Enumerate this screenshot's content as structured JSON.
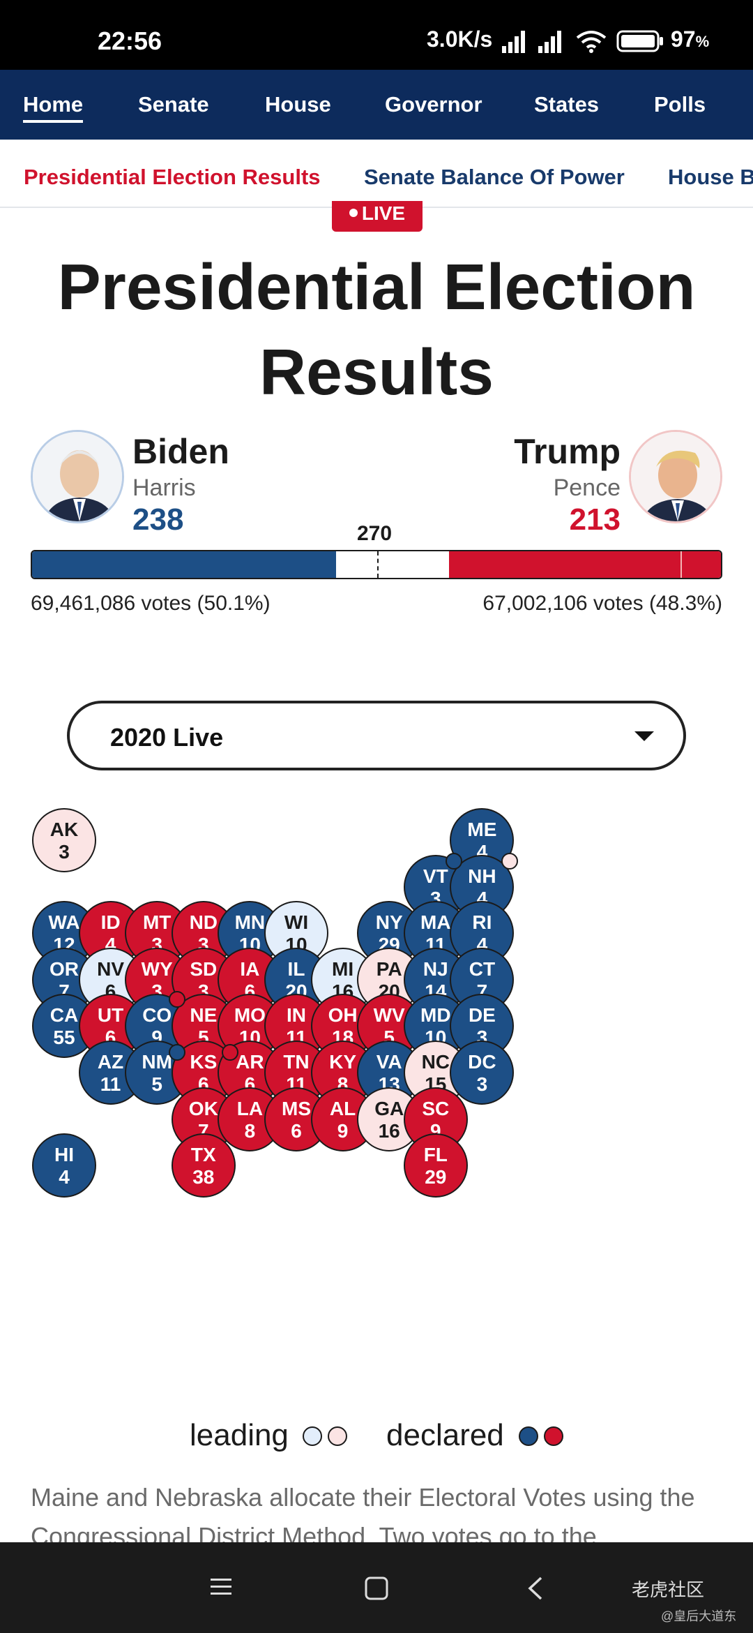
{
  "status_bar": {
    "time": "22:56",
    "net_speed": "3.0K/s",
    "battery": "97"
  },
  "main_nav": [
    "Home",
    "Senate",
    "House",
    "Governor",
    "States",
    "Polls"
  ],
  "sub_nav": [
    "Presidential Election Results",
    "Senate Balance Of Power",
    "House B"
  ],
  "live_badge": "LIVE",
  "page_title": "Presidential Election Results",
  "candidates": {
    "dem": {
      "name": "Biden",
      "vp": "Harris",
      "ev": "238",
      "votes": "69,461,086 votes (50.1%)",
      "color": "#1d4f86"
    },
    "rep": {
      "name": "Trump",
      "vp": "Pence",
      "ev": "213",
      "votes": "67,002,106 votes (48.3%)",
      "color": "#d0122d"
    }
  },
  "threshold_label": "270",
  "progress": {
    "dem_fraction": 0.4415,
    "rep_fraction": 0.3952,
    "threshold_fraction": 0.5009
  },
  "year_selector": {
    "value": "2020 Live"
  },
  "states": [
    {
      "abbr": "AK",
      "ev": "3",
      "status": "lean-rep"
    },
    {
      "abbr": "ME",
      "ev": "4",
      "status": "dem"
    },
    {
      "abbr": "VT",
      "ev": "3",
      "status": "dem"
    },
    {
      "abbr": "NH",
      "ev": "4",
      "status": "dem"
    },
    {
      "abbr": "WA",
      "ev": "12",
      "status": "dem"
    },
    {
      "abbr": "ID",
      "ev": "4",
      "status": "rep"
    },
    {
      "abbr": "MT",
      "ev": "3",
      "status": "rep"
    },
    {
      "abbr": "ND",
      "ev": "3",
      "status": "rep"
    },
    {
      "abbr": "MN",
      "ev": "10",
      "status": "dem"
    },
    {
      "abbr": "WI",
      "ev": "10",
      "status": "lean-dem"
    },
    {
      "abbr": "NY",
      "ev": "29",
      "status": "dem"
    },
    {
      "abbr": "MA",
      "ev": "11",
      "status": "dem"
    },
    {
      "abbr": "RI",
      "ev": "4",
      "status": "dem"
    },
    {
      "abbr": "OR",
      "ev": "7",
      "status": "dem"
    },
    {
      "abbr": "NV",
      "ev": "6",
      "status": "lean-dem"
    },
    {
      "abbr": "WY",
      "ev": "3",
      "status": "rep"
    },
    {
      "abbr": "SD",
      "ev": "3",
      "status": "rep"
    },
    {
      "abbr": "IA",
      "ev": "6",
      "status": "rep"
    },
    {
      "abbr": "IL",
      "ev": "20",
      "status": "dem"
    },
    {
      "abbr": "MI",
      "ev": "16",
      "status": "lean-dem"
    },
    {
      "abbr": "PA",
      "ev": "20",
      "status": "lean-rep"
    },
    {
      "abbr": "NJ",
      "ev": "14",
      "status": "dem"
    },
    {
      "abbr": "CT",
      "ev": "7",
      "status": "dem"
    },
    {
      "abbr": "CA",
      "ev": "55",
      "status": "dem"
    },
    {
      "abbr": "UT",
      "ev": "6",
      "status": "rep"
    },
    {
      "abbr": "CO",
      "ev": "9",
      "status": "dem"
    },
    {
      "abbr": "NE",
      "ev": "5",
      "status": "rep"
    },
    {
      "abbr": "MO",
      "ev": "10",
      "status": "rep"
    },
    {
      "abbr": "IN",
      "ev": "11",
      "status": "rep"
    },
    {
      "abbr": "OH",
      "ev": "18",
      "status": "rep"
    },
    {
      "abbr": "WV",
      "ev": "5",
      "status": "rep"
    },
    {
      "abbr": "MD",
      "ev": "10",
      "status": "dem"
    },
    {
      "abbr": "DE",
      "ev": "3",
      "status": "dem"
    },
    {
      "abbr": "AZ",
      "ev": "11",
      "status": "dem"
    },
    {
      "abbr": "NM",
      "ev": "5",
      "status": "dem"
    },
    {
      "abbr": "KS",
      "ev": "6",
      "status": "rep"
    },
    {
      "abbr": "AR",
      "ev": "6",
      "status": "rep"
    },
    {
      "abbr": "TN",
      "ev": "11",
      "status": "rep"
    },
    {
      "abbr": "KY",
      "ev": "8",
      "status": "rep"
    },
    {
      "abbr": "VA",
      "ev": "13",
      "status": "dem"
    },
    {
      "abbr": "NC",
      "ev": "15",
      "status": "lean-rep"
    },
    {
      "abbr": "DC",
      "ev": "3",
      "status": "dem"
    },
    {
      "abbr": "OK",
      "ev": "7",
      "status": "rep"
    },
    {
      "abbr": "LA",
      "ev": "8",
      "status": "rep"
    },
    {
      "abbr": "MS",
      "ev": "6",
      "status": "rep"
    },
    {
      "abbr": "AL",
      "ev": "9",
      "status": "rep"
    },
    {
      "abbr": "GA",
      "ev": "16",
      "status": "lean-rep"
    },
    {
      "abbr": "SC",
      "ev": "9",
      "status": "rep"
    },
    {
      "abbr": "HI",
      "ev": "4",
      "status": "dem"
    },
    {
      "abbr": "TX",
      "ev": "38",
      "status": "rep"
    },
    {
      "abbr": "FL",
      "ev": "29",
      "status": "rep"
    }
  ],
  "legend": {
    "leading": "leading",
    "declared": "declared"
  },
  "note": "Maine and Nebraska allocate their Electoral Votes using the Congressional District Method. Two votes go to the",
  "colors": {
    "dem": "#1d4f86",
    "rep": "#d0122d",
    "lean_dem": "#e3eefb",
    "lean_rep": "#fbe4e4",
    "nav": "#0d2b5c"
  },
  "watermark": {
    "brand": "老虎社区",
    "handle": "@皇后大道东"
  }
}
